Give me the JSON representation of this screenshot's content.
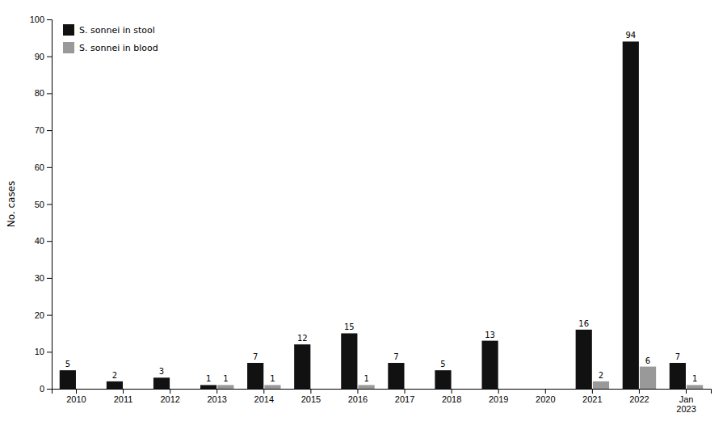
{
  "chart_data": {
    "type": "bar",
    "y_label": "No. cases",
    "categories": [
      "2010",
      "2011",
      "2012",
      "2013",
      "2014",
      "2015",
      "2016",
      "2017",
      "2018",
      "2019",
      "2020",
      "2021",
      "2022",
      "Jan\n2023"
    ],
    "series": [
      {
        "name": "S. sonnei in stool",
        "color": "#111111",
        "values": [
          5,
          2,
          3,
          1,
          7,
          12,
          15,
          7,
          5,
          13,
          0,
          16,
          94,
          7
        ]
      },
      {
        "name": "S. sonnei in blood",
        "color": "#999999",
        "values": [
          0,
          0,
          0,
          1,
          1,
          0,
          1,
          0,
          0,
          0,
          0,
          2,
          6,
          1
        ]
      }
    ],
    "ylim": [
      0,
      100
    ],
    "yticks": [
      0,
      10,
      20,
      30,
      40,
      50,
      60,
      70,
      80,
      90,
      100
    ],
    "grid": false,
    "legend": "upper left",
    "data_labels": true
  }
}
